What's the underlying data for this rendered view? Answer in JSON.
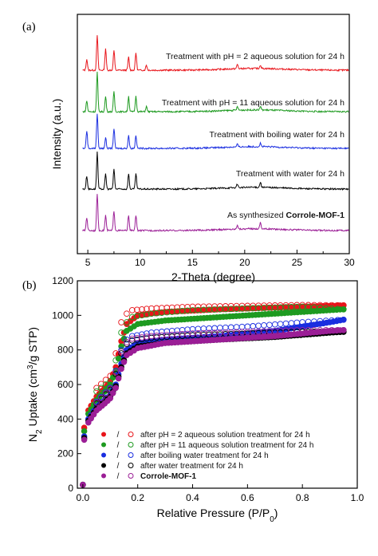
{
  "chart_data": [
    {
      "panel": "(a)",
      "type": "line",
      "xlabel": "2-Theta (degree)",
      "ylabel": "Intensity (a.u.)",
      "xlim": [
        4,
        30
      ],
      "xticks": [
        5,
        10,
        15,
        20,
        25,
        30
      ],
      "yticks_shown": false,
      "series": [
        {
          "label": "Treatment with pH = 2 aqueous solution for 24 h",
          "color": "#e8141a",
          "peaks": [
            [
              4.9,
              0.25
            ],
            [
              5.9,
              0.8
            ],
            [
              6.7,
              0.5
            ],
            [
              7.5,
              0.45
            ],
            [
              8.9,
              0.3
            ],
            [
              9.6,
              0.4
            ],
            [
              10.6,
              0.12
            ],
            [
              19.3,
              0.1
            ],
            [
              21.5,
              0.08
            ]
          ]
        },
        {
          "label": "Treatment with pH = 11 aqueous solution for 24 h",
          "color": "#1e9a20",
          "peaks": [
            [
              4.9,
              0.25
            ],
            [
              5.9,
              0.9
            ],
            [
              6.7,
              0.35
            ],
            [
              7.5,
              0.45
            ],
            [
              8.9,
              0.35
            ],
            [
              9.6,
              0.35
            ],
            [
              10.6,
              0.12
            ],
            [
              19.3,
              0.08
            ],
            [
              21.5,
              0.08
            ]
          ]
        },
        {
          "label": "Treatment with boiling water for 24 h",
          "color": "#1a2ee0",
          "peaks": [
            [
              4.9,
              0.4
            ],
            [
              5.9,
              0.8
            ],
            [
              6.7,
              0.25
            ],
            [
              7.5,
              0.45
            ],
            [
              8.9,
              0.3
            ],
            [
              9.6,
              0.3
            ],
            [
              19.3,
              0.06
            ],
            [
              21.5,
              0.08
            ]
          ]
        },
        {
          "label": "Treatment with water for 24 h",
          "color": "#000000",
          "peaks": [
            [
              4.9,
              0.3
            ],
            [
              5.9,
              0.85
            ],
            [
              6.7,
              0.35
            ],
            [
              7.5,
              0.45
            ],
            [
              8.9,
              0.35
            ],
            [
              9.6,
              0.35
            ],
            [
              19.3,
              0.08
            ],
            [
              21.5,
              0.12
            ]
          ]
        },
        {
          "label": "As synthesized",
          "label_bold": "Corrole-MOF-1",
          "color": "#9b1e96",
          "peaks": [
            [
              4.9,
              0.3
            ],
            [
              5.9,
              0.85
            ],
            [
              6.7,
              0.35
            ],
            [
              7.5,
              0.45
            ],
            [
              8.9,
              0.35
            ],
            [
              9.6,
              0.35
            ],
            [
              19.3,
              0.1
            ],
            [
              21.5,
              0.15
            ]
          ]
        }
      ]
    },
    {
      "panel": "(b)",
      "type": "scatter",
      "xlabel": "Relative Pressure (P/P",
      "xlabel_sub": "0",
      "xlabel_end": ")",
      "ylabel": "N",
      "ylabel_sub": "2",
      "ylabel_mid": " Uptake (cm",
      "ylabel_sup": "3",
      "ylabel_end": "/g STP)",
      "xlim": [
        -0.02,
        1.0
      ],
      "ylim": [
        0,
        1200
      ],
      "xticks": [
        "0.0",
        "0.2",
        "0.4",
        "0.6",
        "0.8",
        "1.0"
      ],
      "yticks": [
        "0",
        "200",
        "400",
        "600",
        "800",
        "1000",
        "1200"
      ],
      "legend_position": "lower-right",
      "legend_separator": "/",
      "series": [
        {
          "label": "after pH = 2 aqueous solution treatment for 24 h",
          "color": "#e8141a",
          "adsorption": [
            [
              0.0,
              20
            ],
            [
              0.005,
              350
            ],
            [
              0.02,
              450
            ],
            [
              0.05,
              530
            ],
            [
              0.08,
              580
            ],
            [
              0.1,
              620
            ],
            [
              0.12,
              700
            ],
            [
              0.14,
              850
            ],
            [
              0.16,
              950
            ],
            [
              0.2,
              1000
            ],
            [
              0.3,
              1020
            ],
            [
              0.5,
              1035
            ],
            [
              0.7,
              1045
            ],
            [
              0.9,
              1055
            ],
            [
              0.95,
              1058
            ]
          ],
          "desorption": [
            [
              0.95,
              1058
            ],
            [
              0.8,
              1060
            ],
            [
              0.6,
              1055
            ],
            [
              0.4,
              1050
            ],
            [
              0.25,
              1040
            ],
            [
              0.18,
              1030
            ],
            [
              0.16,
              1010
            ],
            [
              0.14,
              960
            ],
            [
              0.12,
              780
            ],
            [
              0.1,
              650
            ],
            [
              0.05,
              580
            ]
          ]
        },
        {
          "label": "after pH = 11 aqueous solution treatment for 24 h",
          "color": "#1e9a20",
          "adsorption": [
            [
              0.0,
              20
            ],
            [
              0.005,
              330
            ],
            [
              0.02,
              430
            ],
            [
              0.05,
              510
            ],
            [
              0.08,
              560
            ],
            [
              0.1,
              600
            ],
            [
              0.12,
              680
            ],
            [
              0.14,
              820
            ],
            [
              0.16,
              910
            ],
            [
              0.2,
              950
            ],
            [
              0.3,
              970
            ],
            [
              0.5,
              990
            ],
            [
              0.7,
              1010
            ],
            [
              0.9,
              1030
            ],
            [
              0.95,
              1035
            ]
          ],
          "desorption": [
            [
              0.95,
              1035
            ],
            [
              0.8,
              1050
            ],
            [
              0.6,
              1040
            ],
            [
              0.4,
              1030
            ],
            [
              0.25,
              1010
            ],
            [
              0.18,
              990
            ],
            [
              0.16,
              960
            ],
            [
              0.14,
              900
            ],
            [
              0.12,
              740
            ],
            [
              0.1,
              620
            ],
            [
              0.05,
              560
            ]
          ]
        },
        {
          "label": "after boiling water treatment for 24 h",
          "color": "#1a2ee0",
          "adsorption": [
            [
              0.0,
              20
            ],
            [
              0.005,
              300
            ],
            [
              0.02,
              400
            ],
            [
              0.05,
              470
            ],
            [
              0.08,
              510
            ],
            [
              0.1,
              540
            ],
            [
              0.12,
              600
            ],
            [
              0.14,
              720
            ],
            [
              0.16,
              800
            ],
            [
              0.2,
              840
            ],
            [
              0.3,
              860
            ],
            [
              0.5,
              880
            ],
            [
              0.7,
              910
            ],
            [
              0.9,
              960
            ],
            [
              0.95,
              975
            ]
          ],
          "desorption": [
            [
              0.95,
              975
            ],
            [
              0.8,
              960
            ],
            [
              0.6,
              935
            ],
            [
              0.4,
              920
            ],
            [
              0.25,
              900
            ],
            [
              0.18,
              880
            ],
            [
              0.16,
              860
            ],
            [
              0.14,
              800
            ],
            [
              0.12,
              680
            ],
            [
              0.1,
              580
            ],
            [
              0.05,
              500
            ]
          ]
        },
        {
          "label": "after water treatment for 24 h",
          "color": "#000000",
          "adsorption": [
            [
              0.0,
              20
            ],
            [
              0.005,
              290
            ],
            [
              0.02,
              390
            ],
            [
              0.05,
              460
            ],
            [
              0.08,
              500
            ],
            [
              0.1,
              530
            ],
            [
              0.12,
              590
            ],
            [
              0.14,
              700
            ],
            [
              0.16,
              780
            ],
            [
              0.2,
              820
            ],
            [
              0.3,
              840
            ],
            [
              0.5,
              860
            ],
            [
              0.7,
              875
            ],
            [
              0.9,
              900
            ],
            [
              0.95,
              905
            ]
          ],
          "desorption": [
            [
              0.95,
              905
            ],
            [
              0.8,
              905
            ],
            [
              0.6,
              895
            ],
            [
              0.4,
              885
            ],
            [
              0.25,
              870
            ],
            [
              0.18,
              855
            ],
            [
              0.16,
              835
            ],
            [
              0.14,
              780
            ],
            [
              0.12,
              660
            ],
            [
              0.1,
              570
            ],
            [
              0.05,
              490
            ]
          ]
        },
        {
          "label": "Corrole-MOF-1",
          "bold": true,
          "color": "#9b1e96",
          "adsorption": [
            [
              0.0,
              20
            ],
            [
              0.005,
              280
            ],
            [
              0.02,
              380
            ],
            [
              0.05,
              450
            ],
            [
              0.08,
              490
            ],
            [
              0.1,
              520
            ],
            [
              0.12,
              580
            ],
            [
              0.14,
              690
            ],
            [
              0.16,
              770
            ],
            [
              0.2,
              810
            ],
            [
              0.3,
              840
            ],
            [
              0.5,
              860
            ],
            [
              0.7,
              880
            ],
            [
              0.9,
              910
            ],
            [
              0.95,
              915
            ]
          ],
          "desorption": [
            [
              0.95,
              915
            ],
            [
              0.8,
              915
            ],
            [
              0.6,
              905
            ],
            [
              0.4,
              895
            ],
            [
              0.25,
              880
            ],
            [
              0.18,
              865
            ],
            [
              0.16,
              845
            ],
            [
              0.14,
              790
            ],
            [
              0.12,
              670
            ],
            [
              0.1,
              575
            ],
            [
              0.05,
              495
            ]
          ]
        }
      ]
    }
  ]
}
